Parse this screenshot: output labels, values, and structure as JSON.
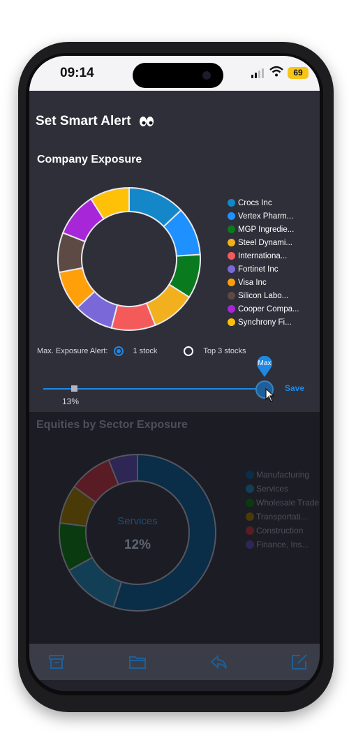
{
  "status": {
    "time": "09:14",
    "battery": "69"
  },
  "header": {
    "title": "Set Smart Alert"
  },
  "company_exposure": {
    "title": "Company Exposure",
    "legend": [
      {
        "label": "Crocs Inc",
        "color": "#1487c9"
      },
      {
        "label": "Vertex Pharm...",
        "color": "#1e90ff"
      },
      {
        "label": "MGP Ingredie...",
        "color": "#0a7a1e"
      },
      {
        "label": "Steel Dynami...",
        "color": "#f2b01e"
      },
      {
        "label": "Internationa...",
        "color": "#f55a5a"
      },
      {
        "label": "Fortinet Inc",
        "color": "#7b68d8"
      },
      {
        "label": "Visa Inc",
        "color": "#ff9f0a"
      },
      {
        "label": "Silicon Labo...",
        "color": "#5e4a45"
      },
      {
        "label": "Cooper Compa...",
        "color": "#a726d8"
      },
      {
        "label": "Synchrony Fi...",
        "color": "#ffc108"
      }
    ],
    "alert_label": "Max. Exposure Alert:",
    "option_1": "1 stock",
    "option_2": "Top 3 stocks",
    "selected_option": "1 stock",
    "slider_value_label": "13%",
    "slider_value": 13,
    "max_label": "Max",
    "save_label": "Save"
  },
  "chart_data": [
    {
      "type": "pie",
      "title": "Company Exposure",
      "categories": [
        "Crocs Inc",
        "Vertex Pharm...",
        "MGP Ingredie...",
        "Steel Dynami...",
        "Internationa...",
        "Fortinet Inc",
        "Visa Inc",
        "Silicon Labo...",
        "Cooper Compa...",
        "Synchrony Fi..."
      ],
      "values": [
        13,
        11,
        10,
        10,
        10,
        9,
        9,
        9,
        10,
        9
      ],
      "colors": [
        "#1487c9",
        "#1e90ff",
        "#0a7a1e",
        "#f2b01e",
        "#f55a5a",
        "#7b68d8",
        "#ff9f0a",
        "#5e4a45",
        "#a726d8",
        "#ffc108"
      ]
    },
    {
      "type": "pie",
      "title": "Equities by Sector Exposure",
      "categories": [
        "Manufacturing",
        "Services",
        "Wholesale Trade",
        "Transportati...",
        "Construction",
        "Finance, Ins..."
      ],
      "values": [
        55,
        12,
        10,
        8,
        9,
        6
      ],
      "colors": [
        "#0a2d48",
        "#123f55",
        "#0a3a10",
        "#4a3a08",
        "#5a1c24",
        "#2e2654"
      ]
    }
  ],
  "sector_exposure": {
    "title": "Equities by Sector Exposure",
    "center_label": "Services",
    "center_value": "12%",
    "legend": [
      {
        "label": "Manufacturing",
        "color": "#0a2d48"
      },
      {
        "label": "Services",
        "color": "#123f55"
      },
      {
        "label": "Wholesale Trade",
        "color": "#0a3a10"
      },
      {
        "label": "Transportati...",
        "color": "#4a3a08"
      },
      {
        "label": "Construction",
        "color": "#5a1c24"
      },
      {
        "label": "Finance, Ins...",
        "color": "#2e2654"
      }
    ]
  },
  "tabbar": {
    "icons": [
      "archive-icon",
      "folder-icon",
      "reply-icon",
      "compose-icon"
    ],
    "color": "#1e5f98"
  }
}
